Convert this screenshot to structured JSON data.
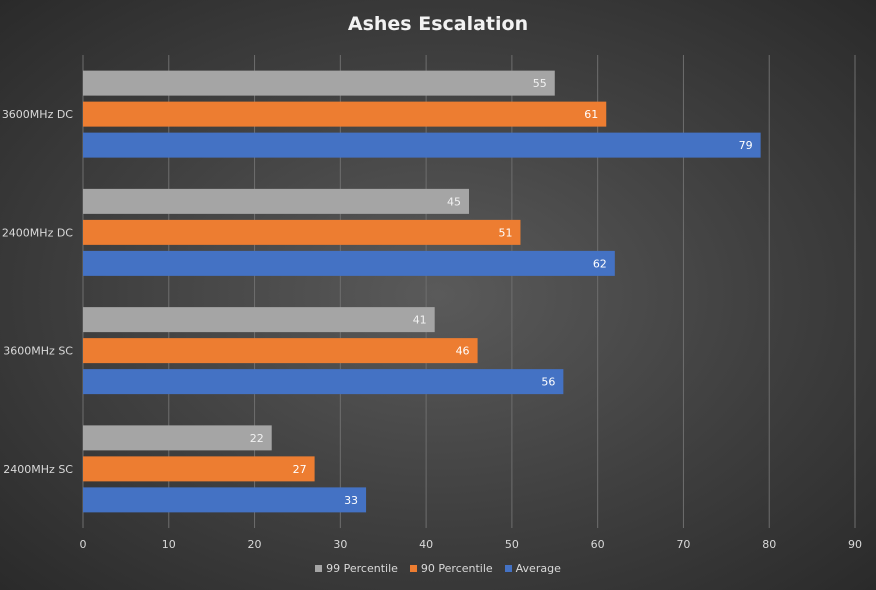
{
  "chart_data": {
    "type": "bar",
    "orientation": "horizontal",
    "title": "Ashes Escalation",
    "categories": [
      "3600MHz DC",
      "2400MHz DC",
      "3600MHz SC",
      "2400MHz SC"
    ],
    "series": [
      {
        "name": "99 Percentile",
        "color": "#a5a5a5",
        "values": [
          55,
          45,
          41,
          22
        ]
      },
      {
        "name": "90 Percentile",
        "color": "#ed7d31",
        "values": [
          61,
          51,
          46,
          27
        ]
      },
      {
        "name": "Average",
        "color": "#4472c4",
        "values": [
          79,
          62,
          56,
          33
        ]
      }
    ],
    "xlim": [
      0,
      90
    ],
    "xticks": [
      0,
      10,
      20,
      30,
      40,
      50,
      60,
      70,
      80,
      90
    ],
    "grid": true,
    "legend_position": "bottom",
    "data_labels": true
  }
}
